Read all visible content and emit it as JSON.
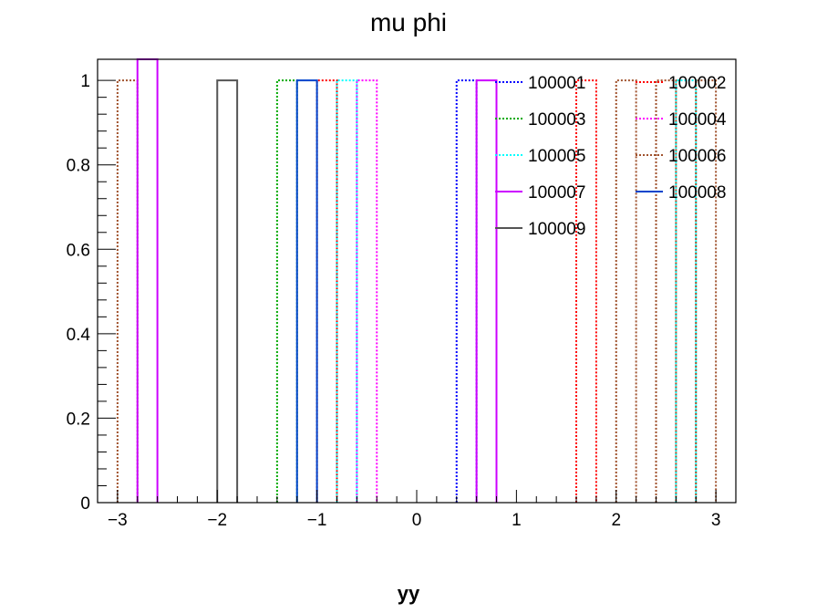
{
  "chart_data": {
    "type": "line",
    "title": "mu phi",
    "xlabel": "yy",
    "ylabel": "",
    "xlim": [
      -3.2,
      3.2
    ],
    "ylim": [
      0,
      1.05
    ],
    "x_ticks": [
      -3,
      -2,
      -1,
      0,
      1,
      2,
      3
    ],
    "x_tick_labels": [
      "−3",
      "−2",
      "−1",
      "0",
      "1",
      "2",
      "3"
    ],
    "y_ticks": [
      0,
      0.2,
      0.4,
      0.6,
      0.8,
      1
    ],
    "y_tick_labels": [
      "0",
      "0.2",
      "0.4",
      "0.6",
      "0.8",
      "1"
    ],
    "grid": false,
    "legend_position": "top-right",
    "series": [
      {
        "name": "100001",
        "color": "#0000ff",
        "style": "dotted",
        "bins": [
          [
            0.4,
            0.6,
            1
          ]
        ]
      },
      {
        "name": "100002",
        "color": "#ff0000",
        "style": "dotted",
        "bins": [
          [
            -1.0,
            -0.8,
            1
          ],
          [
            1.6,
            1.8,
            1
          ]
        ]
      },
      {
        "name": "100003",
        "color": "#00aa00",
        "style": "dotted",
        "bins": [
          [
            -1.4,
            -1.2,
            1
          ]
        ]
      },
      {
        "name": "100004",
        "color": "#ff00ff",
        "style": "dotted",
        "bins": [
          [
            -0.6,
            -0.4,
            1
          ]
        ]
      },
      {
        "name": "100005",
        "color": "#00ffff",
        "style": "dotted",
        "bins": [
          [
            -0.8,
            -0.6,
            1
          ],
          [
            2.6,
            2.8,
            1
          ]
        ]
      },
      {
        "name": "100006",
        "color": "#a0522d",
        "style": "dotted",
        "bins": [
          [
            -3.0,
            -2.8,
            1
          ],
          [
            2.0,
            2.2,
            1
          ],
          [
            2.4,
            2.6,
            1
          ],
          [
            2.8,
            3.0,
            1
          ]
        ]
      },
      {
        "name": "100007",
        "color": "#cc00ff",
        "style": "solid",
        "bins": [
          [
            -2.8,
            -2.6,
            2
          ],
          [
            0.6,
            0.8,
            1
          ]
        ]
      },
      {
        "name": "100008",
        "color": "#0044cc",
        "style": "solid",
        "bins": [
          [
            -1.2,
            -1.0,
            1
          ]
        ]
      },
      {
        "name": "100009",
        "color": "#555555",
        "style": "solid",
        "bins": [
          [
            -2.0,
            -1.8,
            1
          ]
        ]
      }
    ]
  }
}
